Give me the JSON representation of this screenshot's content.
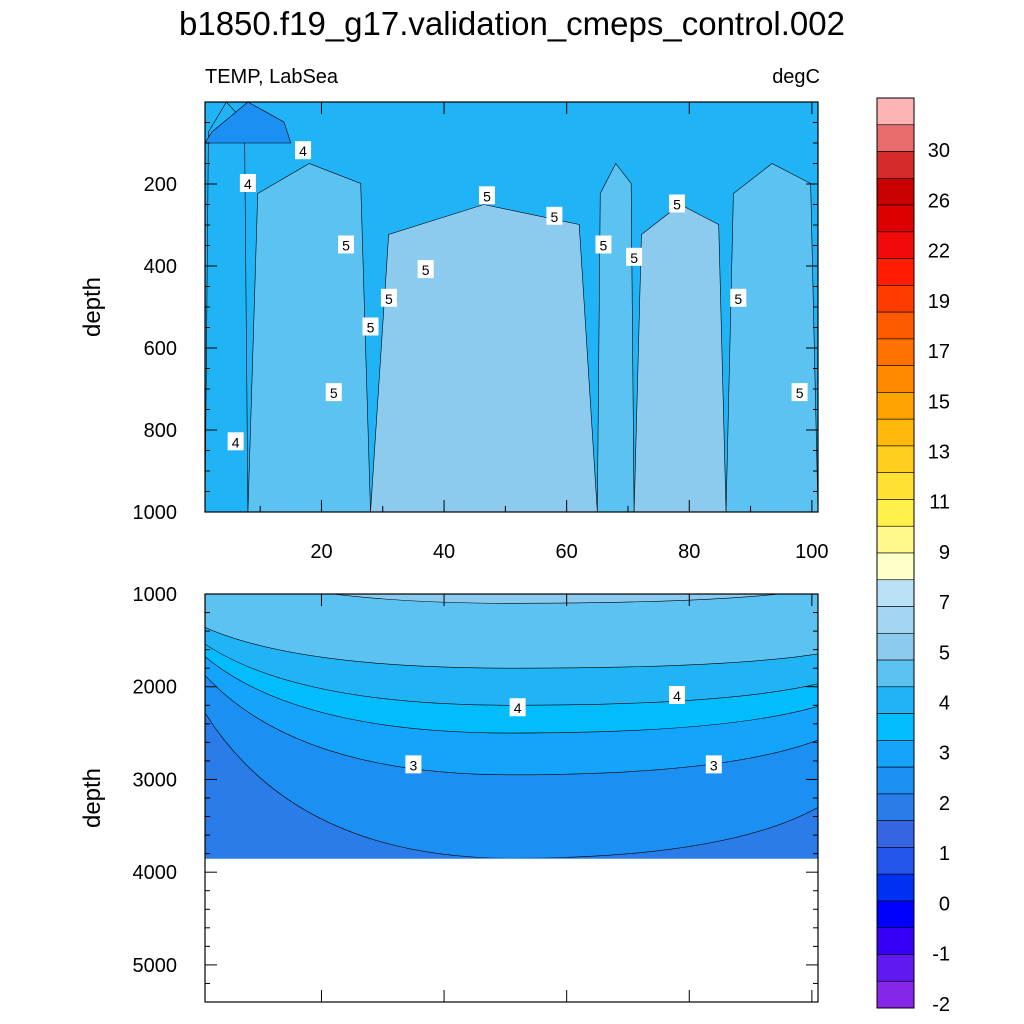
{
  "figure": {
    "title": "b1850.f19_g17.validation_cmeps_control.002",
    "variable_label": "TEMP, LabSea",
    "units_label": "degC"
  },
  "chart_data": [
    {
      "type": "heatmap",
      "panel": "upper",
      "ylabel": "depth",
      "xlim": [
        1,
        101
      ],
      "ylim": [
        1000,
        0
      ],
      "y_reversed": true,
      "x_ticks": [
        "20",
        "40",
        "60",
        "80",
        "100"
      ],
      "y_ticks": [
        "200",
        "400",
        "600",
        "800",
        "1000"
      ],
      "contour_labels": [
        "4",
        "4",
        "4",
        "5",
        "5",
        "5",
        "5",
        "5",
        "5",
        "5",
        "5",
        "5",
        "5",
        "5",
        "5"
      ],
      "regions": [
        {
          "level": "<4",
          "color": "#20b4f6",
          "x_range": [
            1,
            8
          ],
          "depth_range": [
            0,
            1000
          ]
        },
        {
          "level": "4-5",
          "color": "#5bc2f2",
          "x_range": [
            8,
            28
          ],
          "depth_range": [
            150,
            1000
          ]
        },
        {
          "level": "5-6",
          "color": "#8dcbee",
          "x_range": [
            28,
            65
          ],
          "depth_range": [
            250,
            1000
          ]
        },
        {
          "level": "4-5",
          "color": "#5bc2f2",
          "x_range": [
            65,
            71
          ],
          "depth_range": [
            150,
            1000
          ]
        },
        {
          "level": "5-6",
          "color": "#8dcbee",
          "x_range": [
            71,
            86
          ],
          "depth_range": [
            250,
            1000
          ]
        },
        {
          "level": "4-5",
          "color": "#5bc2f2",
          "x_range": [
            86,
            101
          ],
          "depth_range": [
            150,
            1000
          ]
        },
        {
          "level": "3-4",
          "color": "#1b8ff2",
          "x_range": [
            1,
            15
          ],
          "depth_range": [
            0,
            100
          ]
        }
      ]
    },
    {
      "type": "heatmap",
      "panel": "lower",
      "ylabel": "depth",
      "ylim": [
        5400,
        1000
      ],
      "y_reversed": true,
      "y_ticks": [
        "1000",
        "2000",
        "3000",
        "4000",
        "5000"
      ],
      "data_bottom_depth": 3850,
      "contour_labels": [
        "4",
        "4",
        "3",
        "3"
      ],
      "bands": [
        {
          "level": ">5",
          "color": "#8dcbee",
          "depth_at_mid": 1100
        },
        {
          "level": "4.5-5",
          "color": "#5bc2f2",
          "depth_at_mid": 1800
        },
        {
          "level": "4-4.5",
          "color": "#20b4f6",
          "depth_at_mid": 2200
        },
        {
          "level": "3.5-4",
          "color": "#02bcfd",
          "depth_at_mid": 2500
        },
        {
          "level": "3-3.5",
          "color": "#14a4fc",
          "depth_at_mid": 2950
        },
        {
          "level": "2.5-3",
          "color": "#1b8ff2",
          "depth_at_mid": 3850
        }
      ]
    },
    {
      "type": "colorbar",
      "labels": [
        "30",
        "26",
        "22",
        "19",
        "17",
        "15",
        "13",
        "11",
        "9",
        "7",
        "5",
        "4",
        "3",
        "2",
        "1",
        "0",
        "-1",
        "-2"
      ],
      "colors": [
        "#fcb4b4",
        "#e96c6c",
        "#d52b2b",
        "#c80000",
        "#dc0000",
        "#f00a0a",
        "#ff1c00",
        "#ff3b00",
        "#ff5a00",
        "#ff7100",
        "#ff8a00",
        "#ffa300",
        "#ffb90a",
        "#ffcd1e",
        "#ffe033",
        "#fff04a",
        "#fff98c",
        "#ffffc8",
        "#b9e0f4",
        "#a2d6f2",
        "#8dcbee",
        "#5bc2f2",
        "#20b4f6",
        "#02bcfd",
        "#14a4fc",
        "#1b8ff2",
        "#2a7ce8",
        "#3366e0",
        "#2456ec",
        "#0030f2",
        "#0000ff",
        "#3500f5",
        "#6019f0",
        "#8526e8"
      ]
    }
  ]
}
